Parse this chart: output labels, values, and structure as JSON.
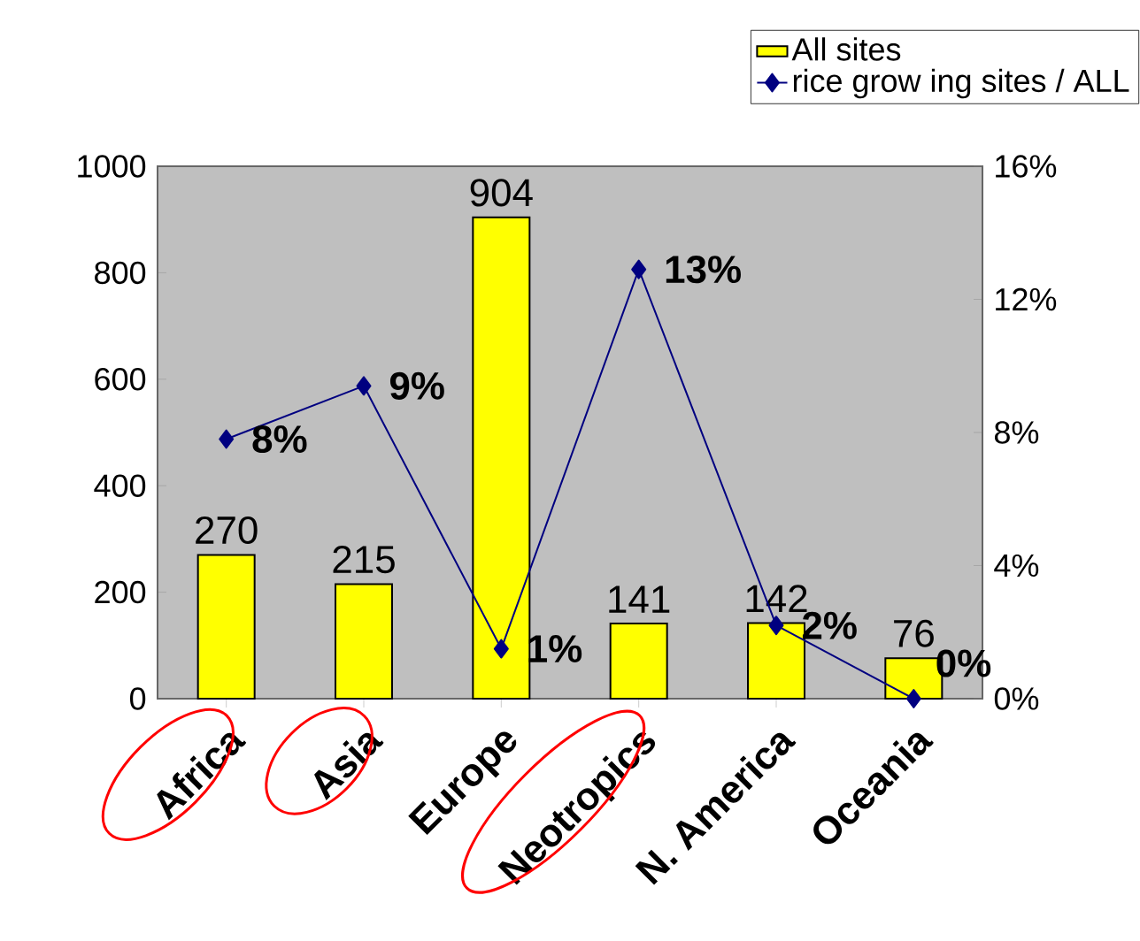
{
  "chart_data": {
    "type": "bar",
    "categories": [
      "Africa",
      "Asia",
      "Europe",
      "Neotropics",
      "N. America",
      "Oceania"
    ],
    "series": [
      {
        "name": "All sites",
        "color": "#ffff00",
        "values": [
          270,
          215,
          904,
          141,
          142,
          76
        ]
      },
      {
        "name": "rice grow ing sites / ALL",
        "type": "line",
        "axis": "y2",
        "color": "#000080",
        "marker": "diamond",
        "values": [
          7.8,
          9.4,
          1.5,
          12.9,
          2.2,
          0
        ],
        "value_labels": [
          "8%",
          "9%",
          "1%",
          "13%",
          "2%",
          "0%"
        ]
      }
    ],
    "data_labels": true,
    "ylim": [
      0,
      1000
    ],
    "yticks": [
      0,
      200,
      400,
      600,
      800,
      1000
    ],
    "y2lim": [
      0,
      16
    ],
    "y2ticks": [
      {
        "value": 0,
        "label": "0%"
      },
      {
        "value": 4,
        "label": "4%"
      },
      {
        "value": 8,
        "label": "8%"
      },
      {
        "value": 12,
        "label": "12%"
      },
      {
        "value": 16,
        "label": "16%"
      }
    ],
    "legend": "top right"
  }
}
